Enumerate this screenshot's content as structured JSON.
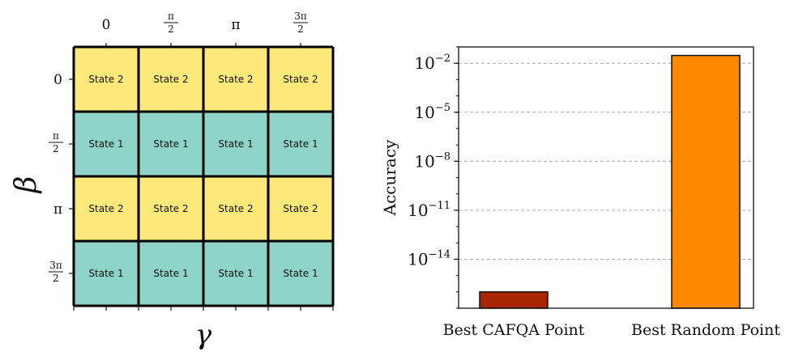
{
  "chart_data": [
    {
      "type": "heatmap",
      "xlabel": "γ",
      "ylabel": "β",
      "x_ticks": [
        {
          "text": "0",
          "frac": null
        },
        {
          "text": "",
          "frac": {
            "num": "π",
            "den": "2"
          }
        },
        {
          "text": "π",
          "frac": null
        },
        {
          "text": "",
          "frac": {
            "num": "3π",
            "den": "2"
          }
        }
      ],
      "y_ticks": [
        {
          "text": "0",
          "frac": null
        },
        {
          "text": "",
          "frac": {
            "num": "π",
            "den": "2"
          }
        },
        {
          "text": "π",
          "frac": null
        },
        {
          "text": "",
          "frac": {
            "num": "3π",
            "den": "2"
          }
        }
      ],
      "cells": [
        [
          "State 2",
          "State 2",
          "State 2",
          "State 2"
        ],
        [
          "State 1",
          "State 1",
          "State 1",
          "State 1"
        ],
        [
          "State 2",
          "State 2",
          "State 2",
          "State 2"
        ],
        [
          "State 1",
          "State 1",
          "State 1",
          "State 1"
        ]
      ],
      "state_colors": {
        "State 1": "#8fd4c8",
        "State 2": "#fde97a"
      },
      "grid_line_color": "#000000"
    },
    {
      "type": "bar",
      "categories": [
        "Best CAFQA Point",
        "Best Random Point"
      ],
      "values": [
        1e-16,
        0.03
      ],
      "colors": [
        "#a82500",
        "#ff8800"
      ],
      "ylabel": "Accuracy",
      "yscale": "log",
      "ylim": [
        1e-17,
        0.1
      ],
      "y_ticks": [
        {
          "value": 0.01,
          "base": "10",
          "exp": "−2"
        },
        {
          "value": 1e-05,
          "base": "10",
          "exp": "−5"
        },
        {
          "value": 1e-08,
          "base": "10",
          "exp": "−8"
        },
        {
          "value": 1e-11,
          "base": "10",
          "exp": "−11"
        },
        {
          "value": 1e-14,
          "base": "10",
          "exp": "−14"
        }
      ],
      "grid": "y-dashed"
    }
  ]
}
